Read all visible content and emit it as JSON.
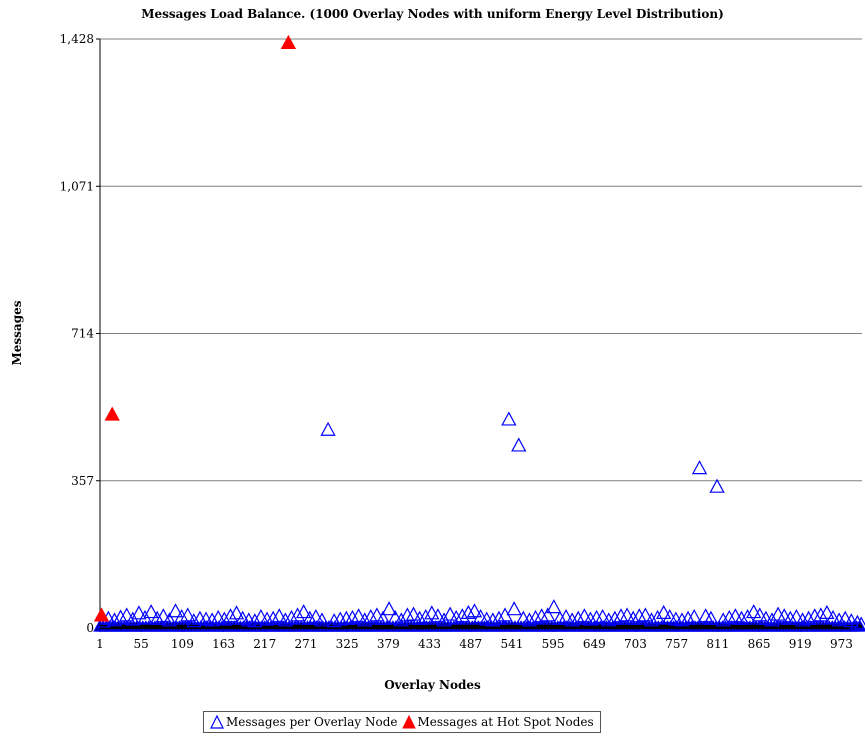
{
  "chart_data": {
    "type": "scatter",
    "title": "Messages Load Balance. (1000 Overlay Nodes with uniform Energy Level Distribution)",
    "xlabel": "Overlay Nodes",
    "ylabel": "Messages",
    "xlim": [
      1,
      1000
    ],
    "ylim": [
      0,
      1428
    ],
    "xticks": [
      "1",
      "55",
      "109",
      "163",
      "217",
      "271",
      "325",
      "379",
      "433",
      "487",
      "541",
      "595",
      "649",
      "703",
      "757",
      "811",
      "865",
      "919",
      "973"
    ],
    "yticks": [
      "0",
      "357",
      "714",
      "1,071",
      "1,428"
    ],
    "grid": "horizontal",
    "legend_position": "bottom",
    "colors": {
      "series1": "#0000ff",
      "series2": "#ff0000"
    },
    "series": [
      {
        "name": "Messages per Overlay Node",
        "marker": "triangle-open",
        "color": "#0000ff",
        "points": [
          [
            300,
            480
          ],
          [
            537,
            505
          ],
          [
            550,
            442
          ],
          [
            787,
            387
          ],
          [
            810,
            342
          ],
          [
            5,
            15
          ],
          [
            12,
            22
          ],
          [
            20,
            18
          ],
          [
            28,
            25
          ],
          [
            36,
            30
          ],
          [
            44,
            20
          ],
          [
            52,
            35
          ],
          [
            60,
            24
          ],
          [
            68,
            38
          ],
          [
            76,
            22
          ],
          [
            84,
            28
          ],
          [
            92,
            18
          ],
          [
            100,
            40
          ],
          [
            108,
            26
          ],
          [
            116,
            30
          ],
          [
            124,
            16
          ],
          [
            132,
            22
          ],
          [
            140,
            20
          ],
          [
            148,
            18
          ],
          [
            156,
            24
          ],
          [
            164,
            20
          ],
          [
            172,
            28
          ],
          [
            180,
            35
          ],
          [
            188,
            22
          ],
          [
            196,
            18
          ],
          [
            204,
            16
          ],
          [
            212,
            26
          ],
          [
            220,
            20
          ],
          [
            228,
            22
          ],
          [
            236,
            28
          ],
          [
            244,
            18
          ],
          [
            252,
            24
          ],
          [
            260,
            30
          ],
          [
            268,
            38
          ],
          [
            276,
            22
          ],
          [
            284,
            26
          ],
          [
            292,
            18
          ],
          [
            308,
            16
          ],
          [
            316,
            20
          ],
          [
            324,
            22
          ],
          [
            332,
            24
          ],
          [
            340,
            28
          ],
          [
            348,
            18
          ],
          [
            356,
            26
          ],
          [
            364,
            30
          ],
          [
            372,
            22
          ],
          [
            380,
            45
          ],
          [
            388,
            24
          ],
          [
            396,
            18
          ],
          [
            404,
            30
          ],
          [
            412,
            32
          ],
          [
            420,
            22
          ],
          [
            428,
            26
          ],
          [
            436,
            35
          ],
          [
            444,
            28
          ],
          [
            452,
            18
          ],
          [
            460,
            32
          ],
          [
            468,
            24
          ],
          [
            476,
            28
          ],
          [
            484,
            36
          ],
          [
            492,
            40
          ],
          [
            500,
            26
          ],
          [
            508,
            20
          ],
          [
            516,
            18
          ],
          [
            524,
            22
          ],
          [
            532,
            30
          ],
          [
            544,
            45
          ],
          [
            556,
            22
          ],
          [
            564,
            18
          ],
          [
            572,
            24
          ],
          [
            580,
            28
          ],
          [
            588,
            30
          ],
          [
            596,
            50
          ],
          [
            604,
            22
          ],
          [
            612,
            26
          ],
          [
            620,
            18
          ],
          [
            628,
            22
          ],
          [
            636,
            28
          ],
          [
            644,
            20
          ],
          [
            652,
            24
          ],
          [
            660,
            26
          ],
          [
            668,
            18
          ],
          [
            676,
            22
          ],
          [
            684,
            28
          ],
          [
            692,
            30
          ],
          [
            700,
            22
          ],
          [
            708,
            28
          ],
          [
            716,
            30
          ],
          [
            724,
            18
          ],
          [
            732,
            24
          ],
          [
            740,
            36
          ],
          [
            748,
            26
          ],
          [
            756,
            20
          ],
          [
            764,
            18
          ],
          [
            772,
            22
          ],
          [
            780,
            26
          ],
          [
            795,
            28
          ],
          [
            802,
            22
          ],
          [
            818,
            18
          ],
          [
            826,
            24
          ],
          [
            834,
            28
          ],
          [
            842,
            22
          ],
          [
            850,
            26
          ],
          [
            858,
            38
          ],
          [
            866,
            30
          ],
          [
            874,
            22
          ],
          [
            882,
            18
          ],
          [
            890,
            32
          ],
          [
            898,
            28
          ],
          [
            906,
            22
          ],
          [
            914,
            26
          ],
          [
            922,
            18
          ],
          [
            930,
            22
          ],
          [
            938,
            28
          ],
          [
            946,
            30
          ],
          [
            954,
            36
          ],
          [
            962,
            24
          ],
          [
            970,
            18
          ],
          [
            978,
            22
          ],
          [
            986,
            16
          ],
          [
            994,
            12
          ],
          [
            999,
            8
          ]
        ]
      },
      {
        "name": "Messages at Hot Spot Nodes",
        "marker": "triangle-filled",
        "color": "#ff0000",
        "points": [
          [
            3,
            30
          ],
          [
            17,
            517
          ],
          [
            248,
            1418
          ]
        ]
      }
    ]
  },
  "legend": {
    "series1_label": "Messages per Overlay Node",
    "series2_label": "Messages at Hot Spot Nodes"
  }
}
